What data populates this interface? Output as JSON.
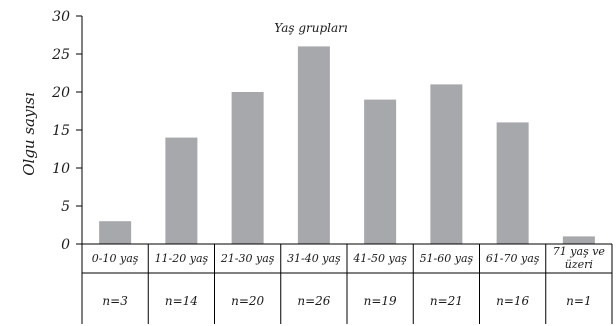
{
  "chart_data": {
    "type": "bar",
    "title": "Yaş grupları",
    "xlabel": "",
    "ylabel": "Olgu sayısı",
    "ylim": [
      0,
      30
    ],
    "yticks": [
      0,
      5,
      10,
      15,
      20,
      25,
      30
    ],
    "grid": false,
    "categories": [
      [
        "0-10 yaş"
      ],
      [
        "11-20 yaş"
      ],
      [
        "21-30 yaş"
      ],
      [
        "31-40 yaş"
      ],
      [
        "41-50 yaş"
      ],
      [
        "51-60 yaş"
      ],
      [
        "61-70 yaş"
      ],
      [
        "71 yaş ve",
        "üzeri"
      ]
    ],
    "values": [
      3,
      14,
      20,
      26,
      19,
      21,
      16,
      1
    ],
    "counts": [
      "n=3",
      "n=14",
      "n=20",
      "n=26",
      "n=19",
      "n=21",
      "n=16",
      "n=1"
    ],
    "bar_color": "#a6a8ab"
  }
}
